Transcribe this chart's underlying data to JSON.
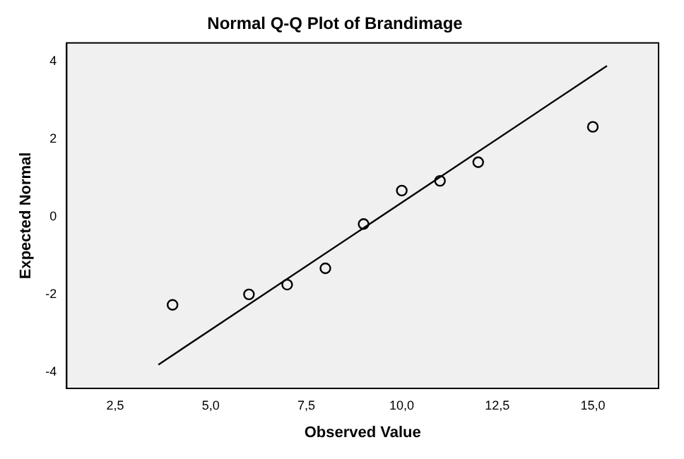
{
  "chart_data": {
    "type": "scatter",
    "title": "Normal Q-Q Plot of Brandimage",
    "xlabel": "Observed Value",
    "ylabel": "Expected Normal",
    "series": [
      {
        "type": "scatter",
        "color": "#000000",
        "marker": "circle",
        "x": [
          4,
          6,
          7,
          8,
          9,
          10,
          11,
          12,
          15
        ],
        "values": [
          -2.27,
          -2.0,
          -1.75,
          -1.33,
          -0.19,
          0.67,
          0.92,
          1.4,
          2.31
        ]
      },
      {
        "type": "line",
        "color": "#000000",
        "marker": "none",
        "line_style": "solid",
        "x": [
          3.63,
          15.37
        ],
        "values": [
          -3.81,
          3.88
        ]
      }
    ],
    "xlim": [
      1.23,
      16.72
    ],
    "xticks": [
      {
        "value": 2.5,
        "label": "2,5"
      },
      {
        "value": 5,
        "label": "5,0"
      },
      {
        "value": 7.5,
        "label": "7,5"
      },
      {
        "value": 10,
        "label": "10,0"
      },
      {
        "value": 12.5,
        "label": "12,5"
      },
      {
        "value": 15,
        "label": "15,0"
      }
    ],
    "ylim": [
      -4.42,
      4.47
    ],
    "yticks": [
      -4,
      -2,
      0,
      2,
      4
    ],
    "grid": false,
    "legend": false
  }
}
